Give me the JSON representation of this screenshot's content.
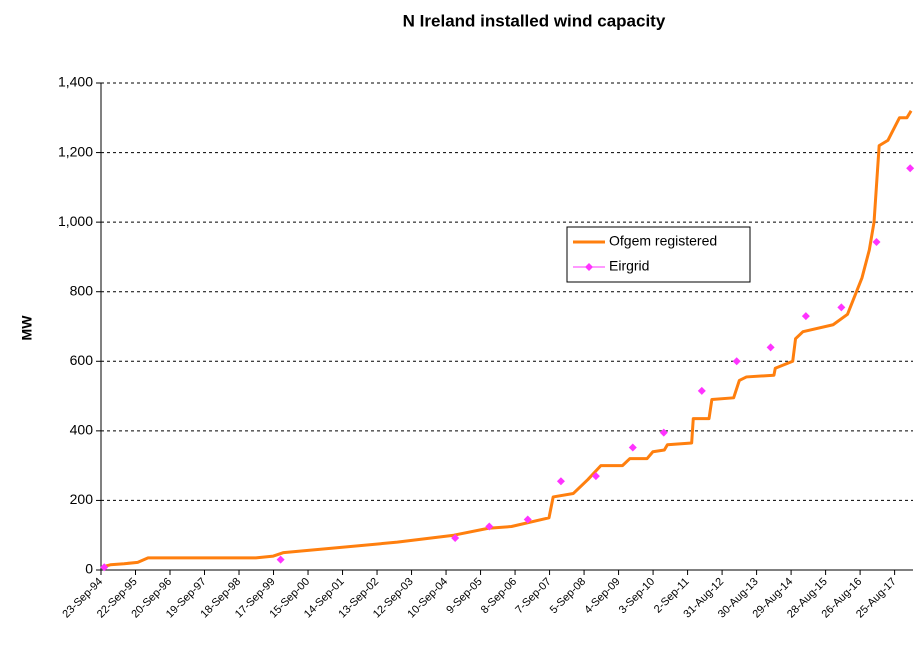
{
  "chart_data": {
    "type": "line",
    "title": "N Ireland installed wind capacity",
    "y_label": "MW",
    "grid": true,
    "legend": "right",
    "xlim": [
      "1994-09-23",
      "2018-03-07"
    ],
    "xticks": [
      {
        "value": "1994-09-23",
        "label": "23-Sep-94"
      },
      {
        "value": "1995-09-22",
        "label": "22-Sep-95"
      },
      {
        "value": "1996-09-20",
        "label": "20-Sep-96"
      },
      {
        "value": "1997-09-19",
        "label": "19-Sep-97"
      },
      {
        "value": "1998-09-18",
        "label": "18-Sep-98"
      },
      {
        "value": "1999-09-17",
        "label": "17-Sep-99"
      },
      {
        "value": "2000-09-15",
        "label": "15-Sep-00"
      },
      {
        "value": "2001-09-14",
        "label": "14-Sep-01"
      },
      {
        "value": "2002-09-13",
        "label": "13-Sep-02"
      },
      {
        "value": "2003-09-12",
        "label": "12-Sep-03"
      },
      {
        "value": "2004-09-10",
        "label": "10-Sep-04"
      },
      {
        "value": "2005-09-09",
        "label": "9-Sep-05"
      },
      {
        "value": "2006-09-08",
        "label": "8-Sep-06"
      },
      {
        "value": "2007-09-07",
        "label": "7-Sep-07"
      },
      {
        "value": "2008-09-05",
        "label": "5-Sep-08"
      },
      {
        "value": "2009-09-04",
        "label": "4-Sep-09"
      },
      {
        "value": "2010-09-03",
        "label": "3-Sep-10"
      },
      {
        "value": "2011-09-02",
        "label": "2-Sep-11"
      },
      {
        "value": "2012-08-31",
        "label": "31-Aug-12"
      },
      {
        "value": "2013-08-30",
        "label": "30-Aug-13"
      },
      {
        "value": "2014-08-29",
        "label": "29-Aug-14"
      },
      {
        "value": "2015-08-28",
        "label": "28-Aug-15"
      },
      {
        "value": "2016-08-26",
        "label": "26-Aug-16"
      },
      {
        "value": "2017-08-25",
        "label": "25-Aug-17"
      }
    ],
    "ylim": [
      0,
      1400
    ],
    "yticks": [
      0,
      200,
      400,
      600,
      800,
      {
        "value": 1000,
        "label": "1,000"
      },
      {
        "value": 1200,
        "label": "1,200"
      },
      {
        "value": 1400,
        "label": "1,400"
      }
    ],
    "series": [
      {
        "name": "Ofgem registered",
        "color": "#ff7f0e",
        "kind": "line",
        "x": [
          "1994-10-20",
          "1994-12-31",
          "1995-05-25",
          "1995-10-15",
          "1996-02-01",
          "1999-03-15",
          "1999-09-15",
          "2000-01-01",
          "2003-04-15",
          "2004-12-01",
          "2005-12-01",
          "2006-08-01",
          "2007-09-01",
          "2007-10-15",
          "2008-05-15",
          "2008-10-15",
          "2009-03-01",
          "2009-10-15",
          "2009-12-31",
          "2010-07-01",
          "2010-09-01",
          "2010-12-31",
          "2011-02-01",
          "2011-10-15",
          "2011-11-01",
          "2012-04-15",
          "2012-05-15",
          "2012-12-31",
          "2013-03-01",
          "2013-05-15",
          "2014-03-01",
          "2014-03-15",
          "2014-09-15",
          "2014-10-15",
          "2015-01-01",
          "2015-11-15",
          "2016-04-15",
          "2016-09-15",
          "2016-12-01",
          "2017-01-20",
          "2017-03-15",
          "2017-06-15",
          "2017-10-15",
          "2018-01-01",
          "2018-02-15"
        ],
        "values": [
          10,
          15,
          18,
          22,
          35,
          35,
          40,
          50,
          80,
          100,
          120,
          125,
          150,
          210,
          220,
          260,
          300,
          300,
          320,
          320,
          340,
          345,
          360,
          365,
          435,
          435,
          490,
          495,
          545,
          555,
          560,
          580,
          600,
          665,
          685,
          705,
          735,
          840,
          920,
          1000,
          1220,
          1235,
          1300,
          1300,
          1320
        ]
      },
      {
        "name": "Eirgrid",
        "color": "#ff33ff",
        "kind": "points",
        "x": [
          "1994-10-27",
          "1999-12-01",
          "2004-12-15",
          "2005-12-10",
          "2007-01-20",
          "2008-01-05",
          "2009-01-08",
          "2010-02-01",
          "2010-12-25",
          "2012-01-30",
          "2013-02-01",
          "2014-01-25",
          "2015-02-01",
          "2016-02-10",
          "2017-02-15",
          "2018-02-05"
        ],
        "values": [
          8,
          30,
          92,
          125,
          145,
          255,
          270,
          352,
          395,
          515,
          600,
          640,
          730,
          755,
          943,
          1155
        ]
      }
    ]
  }
}
